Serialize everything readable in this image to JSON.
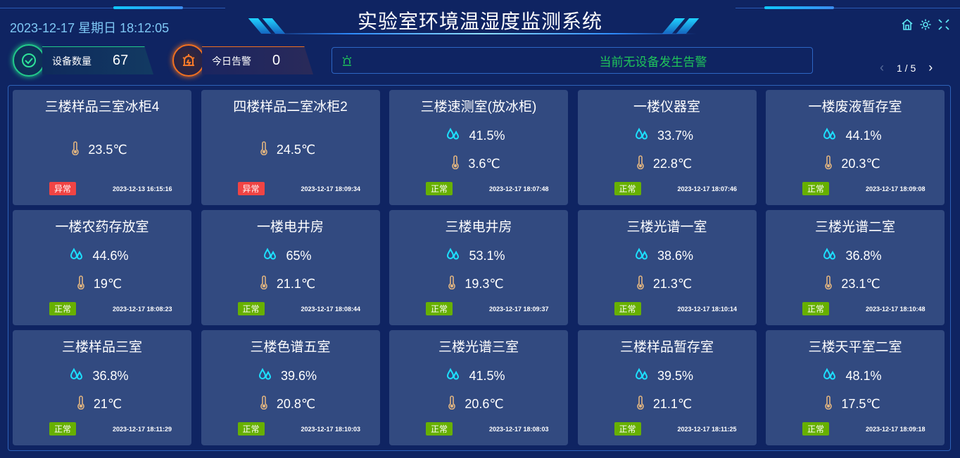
{
  "header": {
    "datetime": "2023-12-17 星期日 18:12:05",
    "title": "实验室环境温湿度监测系统",
    "icons": [
      "home-icon",
      "gear-icon",
      "fullscreen-icon"
    ]
  },
  "stats": {
    "device_label": "设备数量",
    "device_count": "67",
    "alarm_label": "今日告警",
    "alarm_count": "0"
  },
  "alert": {
    "icon": "alarm-light-icon",
    "message": "当前无设备发生告警"
  },
  "pager": {
    "text": "1 / 5"
  },
  "colors": {
    "ok": "#67b000",
    "bad": "#f04444",
    "humidity": "#1de0ff",
    "temperature": "#e0b480",
    "alert_text": "#1fc45a"
  },
  "cards": [
    {
      "name": "三楼样品三室冰柜4",
      "humidity": null,
      "temperature": "23.5℃",
      "status": "异常",
      "status_type": "bad",
      "time": "2023-12-13 16:15:16"
    },
    {
      "name": "四楼样品二室冰柜2",
      "humidity": null,
      "temperature": "24.5℃",
      "status": "异常",
      "status_type": "bad",
      "time": "2023-12-17 18:09:34"
    },
    {
      "name": "三楼速测室(放冰柜)",
      "humidity": "41.5%",
      "temperature": "3.6℃",
      "status": "正常",
      "status_type": "ok",
      "time": "2023-12-17 18:07:48"
    },
    {
      "name": "一楼仪器室",
      "humidity": "33.7%",
      "temperature": "22.8℃",
      "status": "正常",
      "status_type": "ok",
      "time": "2023-12-17 18:07:46"
    },
    {
      "name": "一楼废液暂存室",
      "humidity": "44.1%",
      "temperature": "20.3℃",
      "status": "正常",
      "status_type": "ok",
      "time": "2023-12-17 18:09:08"
    },
    {
      "name": "一楼农药存放室",
      "humidity": "44.6%",
      "temperature": "19℃",
      "status": "正常",
      "status_type": "ok",
      "time": "2023-12-17 18:08:23"
    },
    {
      "name": "一楼电井房",
      "humidity": "65%",
      "temperature": "21.1℃",
      "status": "正常",
      "status_type": "ok",
      "time": "2023-12-17 18:08:44"
    },
    {
      "name": "三楼电井房",
      "humidity": "53.1%",
      "temperature": "19.3℃",
      "status": "正常",
      "status_type": "ok",
      "time": "2023-12-17 18:09:37"
    },
    {
      "name": "三楼光谱一室",
      "humidity": "38.6%",
      "temperature": "21.3℃",
      "status": "正常",
      "status_type": "ok",
      "time": "2023-12-17 18:10:14"
    },
    {
      "name": "三楼光谱二室",
      "humidity": "36.8%",
      "temperature": "23.1℃",
      "status": "正常",
      "status_type": "ok",
      "time": "2023-12-17 18:10:48"
    },
    {
      "name": "三楼样品三室",
      "humidity": "36.8%",
      "temperature": "21℃",
      "status": "正常",
      "status_type": "ok",
      "time": "2023-12-17 18:11:29"
    },
    {
      "name": "三楼色谱五室",
      "humidity": "39.6%",
      "temperature": "20.8℃",
      "status": "正常",
      "status_type": "ok",
      "time": "2023-12-17 18:10:03"
    },
    {
      "name": "三楼光谱三室",
      "humidity": "41.5%",
      "temperature": "20.6℃",
      "status": "正常",
      "status_type": "ok",
      "time": "2023-12-17 18:08:03"
    },
    {
      "name": "三楼样品暂存室",
      "humidity": "39.5%",
      "temperature": "21.1℃",
      "status": "正常",
      "status_type": "ok",
      "time": "2023-12-17 18:11:25"
    },
    {
      "name": "三楼天平室二室",
      "humidity": "48.1%",
      "temperature": "17.5℃",
      "status": "正常",
      "status_type": "ok",
      "time": "2023-12-17 18:09:18"
    }
  ]
}
